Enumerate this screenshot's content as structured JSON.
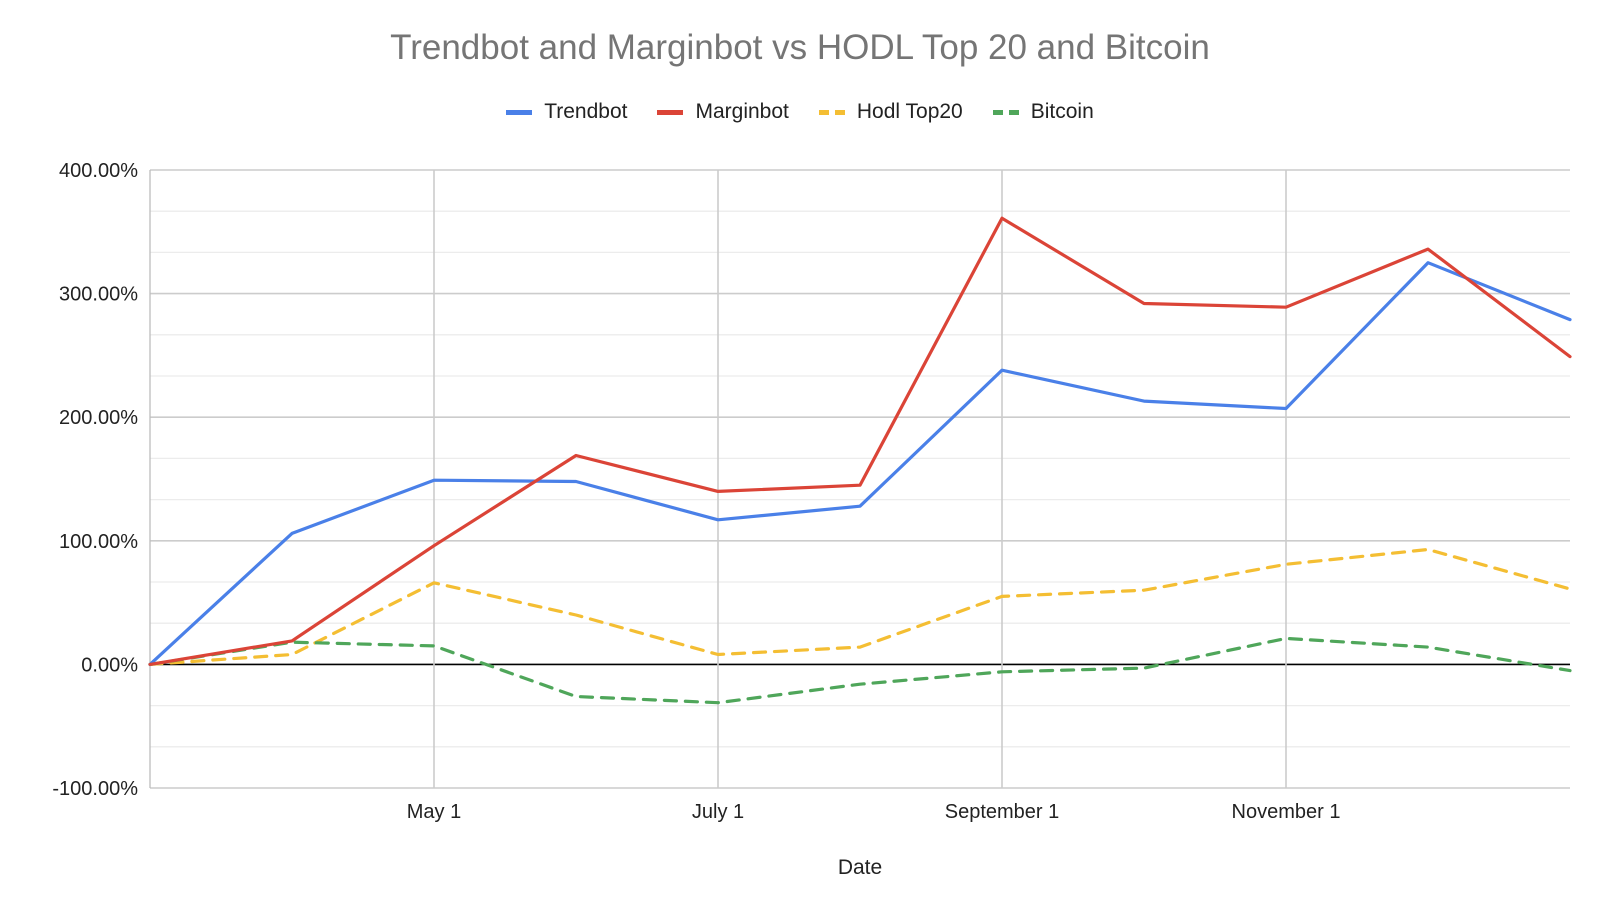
{
  "chart_data": {
    "type": "line",
    "title": "Trendbot and Marginbot vs HODL Top 20 and Bitcoin",
    "xlabel": "Date",
    "ylabel": "",
    "ylim": [
      -100,
      400
    ],
    "y_ticks": [
      "400.00%",
      "300.00%",
      "200.00%",
      "100.00%",
      "0.00%",
      "-100.00%"
    ],
    "y_tick_values": [
      400,
      300,
      200,
      100,
      0,
      -100
    ],
    "x_ticks": [
      "May 1",
      "July 1",
      "September 1",
      "November 1"
    ],
    "x_tick_positions": [
      2,
      4,
      6,
      8
    ],
    "x_range": [
      0,
      10
    ],
    "x": [
      0,
      1,
      2,
      3,
      4,
      5,
      6,
      7,
      8,
      9,
      10
    ],
    "grid": true,
    "legend_position": "top",
    "series": [
      {
        "name": "Trendbot",
        "color": "#4a80e8",
        "dashed": false,
        "values": [
          0,
          106,
          149,
          148,
          117,
          128,
          238,
          213,
          207,
          325,
          279
        ]
      },
      {
        "name": "Marginbot",
        "color": "#db4437",
        "dashed": false,
        "values": [
          0,
          19,
          96,
          169,
          140,
          145,
          361,
          292,
          289,
          336,
          249
        ]
      },
      {
        "name": "Hodl Top20",
        "color": "#f4be33",
        "dashed": true,
        "values": [
          0,
          8,
          66,
          40,
          8,
          14,
          55,
          60,
          81,
          93,
          61
        ]
      },
      {
        "name": "Bitcoin",
        "color": "#4fa65a",
        "dashed": true,
        "values": [
          0,
          18,
          15,
          -26,
          -31,
          -16,
          -6,
          -3,
          21,
          14,
          -5
        ]
      }
    ]
  }
}
